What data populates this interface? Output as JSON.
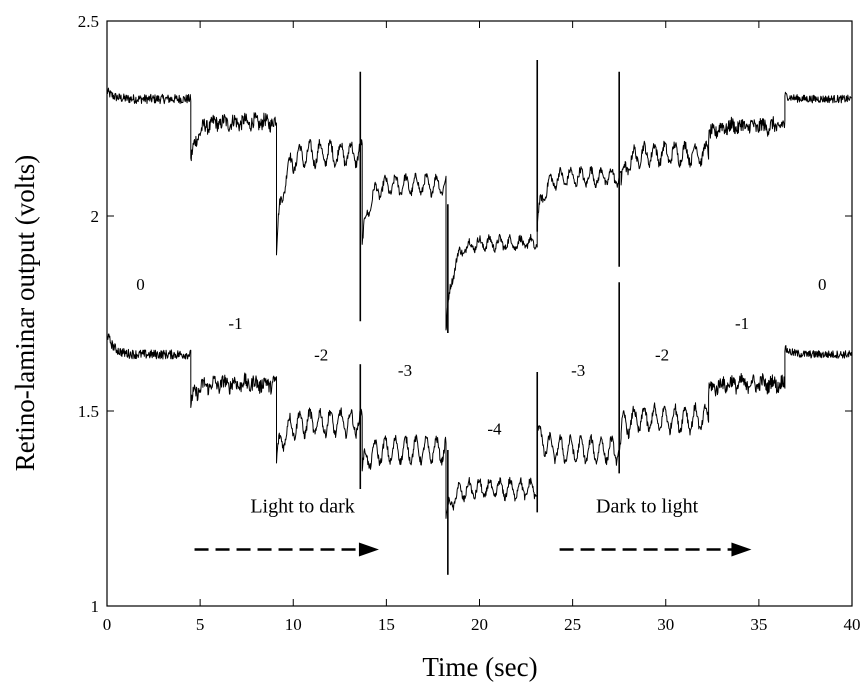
{
  "chart_data": {
    "type": "line",
    "xlabel": "Time (sec)",
    "ylabel": "Retino-laminar output (volts)",
    "xlim": [
      0,
      40
    ],
    "ylim": [
      1,
      2.5
    ],
    "xticks": [
      0,
      5,
      10,
      15,
      20,
      25,
      30,
      35,
      40
    ],
    "yticks": [
      1,
      1.5,
      2,
      2.5
    ],
    "ytick_labels": [
      "1",
      "1.5",
      "2",
      "2.5"
    ],
    "grid": false,
    "series": [
      {
        "segments": [
          {
            "x0": 0.0,
            "x1": 4.5,
            "level": 2.3,
            "start": 2.32,
            "ripple": 0.012,
            "osc": 0.0
          },
          {
            "x0": 4.5,
            "x1": 9.1,
            "level": 2.24,
            "start": 2.14,
            "ripple": 0.018,
            "osc": 0.008
          },
          {
            "x0": 9.1,
            "x1": 13.7,
            "level": 2.16,
            "start": 1.91,
            "ripple": 0.012,
            "osc": 0.028
          },
          {
            "x0": 13.7,
            "x1": 18.2,
            "level": 2.08,
            "start": 1.92,
            "ripple": 0.01,
            "osc": 0.022
          },
          {
            "x0": 18.2,
            "x1": 23.1,
            "level": 1.93,
            "start": 1.7,
            "ripple": 0.01,
            "osc": 0.014
          },
          {
            "x0": 23.1,
            "x1": 27.6,
            "level": 2.1,
            "start": 1.98,
            "ripple": 0.01,
            "osc": 0.02
          },
          {
            "x0": 27.6,
            "x1": 32.3,
            "level": 2.16,
            "start": 2.08,
            "ripple": 0.012,
            "osc": 0.024
          },
          {
            "x0": 32.3,
            "x1": 36.4,
            "level": 2.23,
            "start": 2.2,
            "ripple": 0.018,
            "osc": 0.008
          },
          {
            "x0": 36.4,
            "x1": 40.0,
            "level": 2.3,
            "start": 2.31,
            "ripple": 0.01,
            "osc": 0.0
          }
        ],
        "spikes": [
          {
            "x": 13.6,
            "y0": 1.73,
            "y1": 2.37
          },
          {
            "x": 18.3,
            "y0": 1.7,
            "y1": 2.03
          },
          {
            "x": 23.1,
            "y0": 1.96,
            "y1": 2.4
          },
          {
            "x": 27.5,
            "y0": 1.87,
            "y1": 2.37
          }
        ]
      },
      {
        "segments": [
          {
            "x0": 0.0,
            "x1": 4.5,
            "level": 1.645,
            "start": 1.7,
            "ripple": 0.012,
            "osc": 0.0
          },
          {
            "x0": 4.5,
            "x1": 9.1,
            "level": 1.57,
            "start": 1.52,
            "ripple": 0.018,
            "osc": 0.01
          },
          {
            "x0": 9.1,
            "x1": 13.7,
            "level": 1.47,
            "start": 1.37,
            "ripple": 0.012,
            "osc": 0.03
          },
          {
            "x0": 13.7,
            "x1": 18.2,
            "level": 1.4,
            "start": 1.35,
            "ripple": 0.01,
            "osc": 0.03
          },
          {
            "x0": 18.2,
            "x1": 23.1,
            "level": 1.3,
            "start": 1.22,
            "ripple": 0.01,
            "osc": 0.022
          },
          {
            "x0": 23.1,
            "x1": 27.6,
            "level": 1.4,
            "start": 1.45,
            "ripple": 0.01,
            "osc": 0.03
          },
          {
            "x0": 27.6,
            "x1": 32.3,
            "level": 1.48,
            "start": 1.45,
            "ripple": 0.012,
            "osc": 0.03
          },
          {
            "x0": 32.3,
            "x1": 36.4,
            "level": 1.57,
            "start": 1.55,
            "ripple": 0.018,
            "osc": 0.01
          },
          {
            "x0": 36.4,
            "x1": 40.0,
            "level": 1.645,
            "start": 1.66,
            "ripple": 0.01,
            "osc": 0.0
          }
        ],
        "spikes": [
          {
            "x": 13.6,
            "y0": 1.3,
            "y1": 1.62
          },
          {
            "x": 18.3,
            "y0": 1.08,
            "y1": 1.4
          },
          {
            "x": 23.1,
            "y0": 1.24,
            "y1": 1.6
          },
          {
            "x": 27.5,
            "y0": 1.34,
            "y1": 1.83
          }
        ]
      }
    ],
    "level_labels": [
      {
        "text": "0",
        "x": 1.8,
        "y": 1.81
      },
      {
        "text": "-1",
        "x": 6.9,
        "y": 1.71
      },
      {
        "text": "-2",
        "x": 11.5,
        "y": 1.63
      },
      {
        "text": "-3",
        "x": 16.0,
        "y": 1.59
      },
      {
        "text": "-4",
        "x": 20.8,
        "y": 1.44
      },
      {
        "text": "-3",
        "x": 25.3,
        "y": 1.59
      },
      {
        "text": "-2",
        "x": 29.8,
        "y": 1.63
      },
      {
        "text": "-1",
        "x": 34.1,
        "y": 1.71
      },
      {
        "text": "0",
        "x": 38.4,
        "y": 1.81
      }
    ],
    "arrows": [
      {
        "text": "Light to dark",
        "text_x": 10.5,
        "text_y": 1.24,
        "x0": 4.7,
        "x1": 14.6,
        "y": 1.145
      },
      {
        "text": "Dark to light",
        "text_x": 29.0,
        "text_y": 1.24,
        "x0": 24.3,
        "x1": 34.6,
        "y": 1.145
      }
    ]
  }
}
